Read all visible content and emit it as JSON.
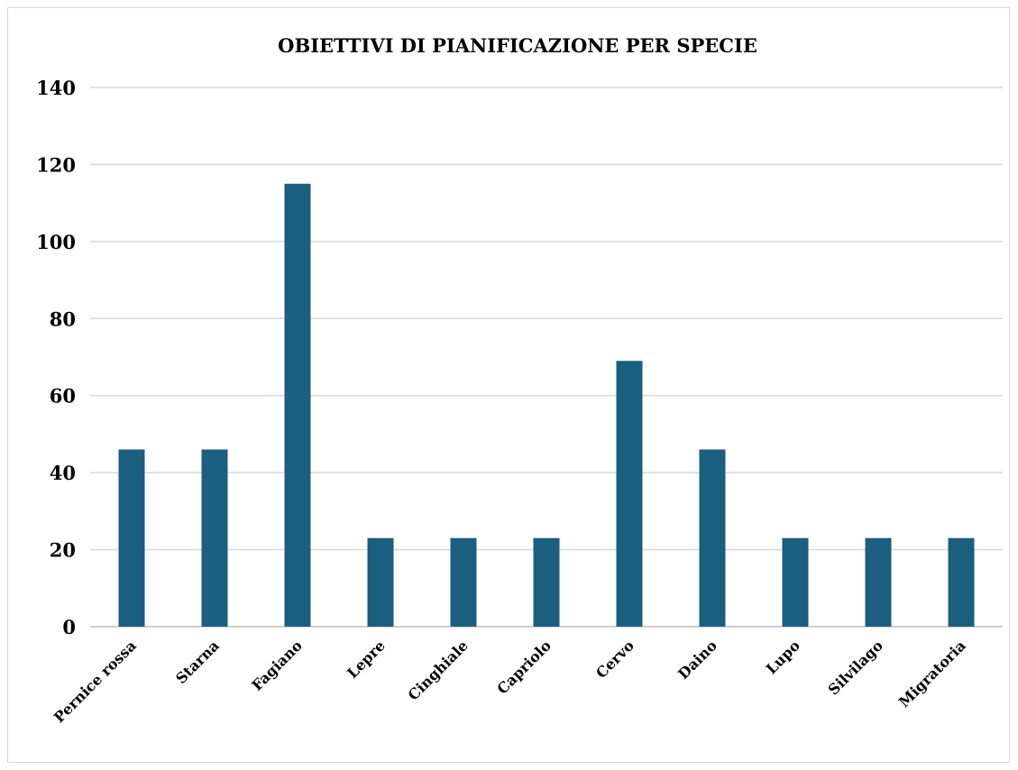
{
  "chart_data": {
    "type": "bar",
    "title": "OBIETTIVI DI PIANIFICAZIONE PER SPECIE",
    "xlabel": "",
    "ylabel": "",
    "categories": [
      "Pernice rossa",
      "Starna",
      "Fagiano",
      "Lepre",
      "Cinghiale",
      "Capriolo",
      "Cervo",
      "Daino",
      "Lupo",
      "Silvilago",
      "Migratoria"
    ],
    "values": [
      46,
      46,
      115,
      23,
      23,
      23,
      69,
      46,
      23,
      23,
      23
    ],
    "ylim": [
      0,
      140
    ],
    "yticks": [
      "0",
      "20",
      "40",
      "60",
      "80",
      "100",
      "120",
      "140"
    ],
    "grid": true,
    "bar_color": "#1a5e80"
  }
}
